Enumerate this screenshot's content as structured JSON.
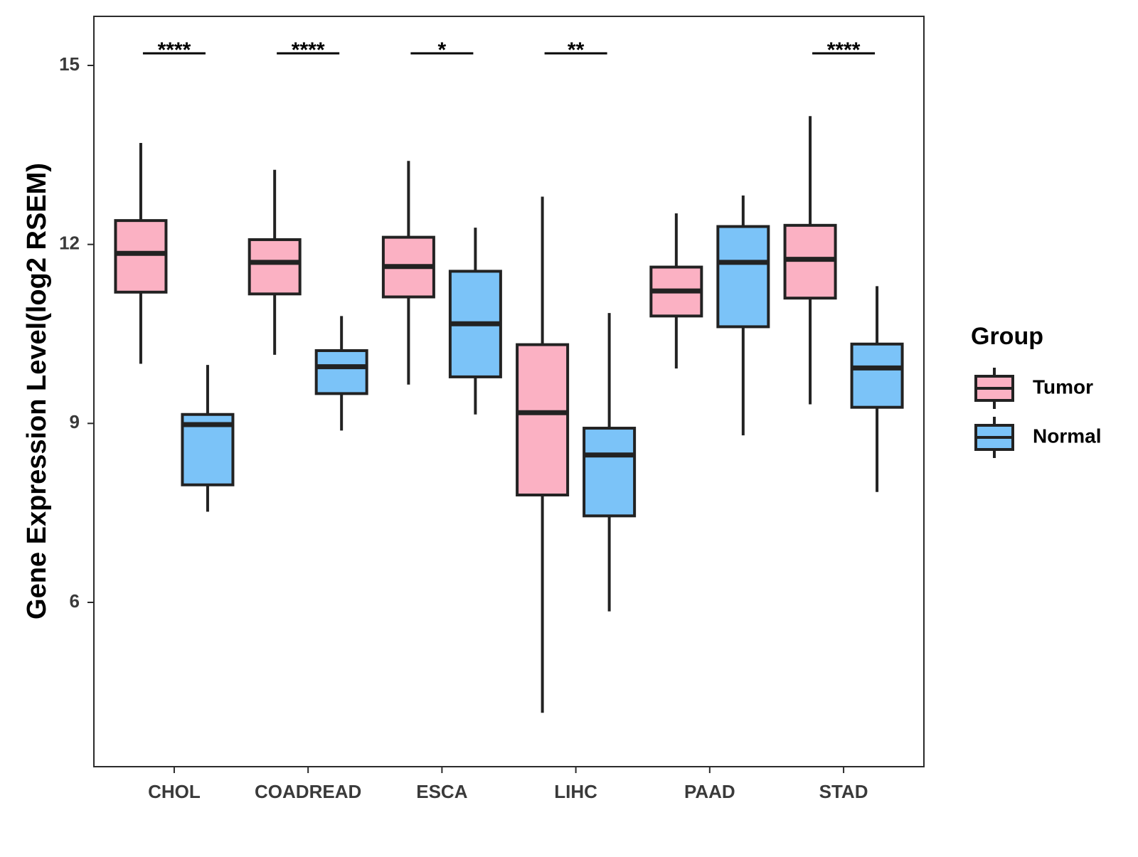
{
  "chart_data": {
    "type": "boxplot",
    "title": "",
    "xlabel": "",
    "ylabel": "Gene Expression Level(log2 RSEM)",
    "ylim": [
      3.2,
      15.8
    ],
    "yticks": [
      6,
      9,
      12,
      15
    ],
    "grid": false,
    "categories": [
      "CHOL",
      "COADREAD",
      "ESCA",
      "LIHC",
      "PAAD",
      "STAD"
    ],
    "series": [
      {
        "name": "Tumor",
        "color": "#fbb1c3",
        "boxes": [
          {
            "min": 10.0,
            "q1": 11.2,
            "median": 11.85,
            "q3": 12.4,
            "max": 13.7
          },
          {
            "min": 10.15,
            "q1": 11.17,
            "median": 11.7,
            "q3": 12.08,
            "max": 13.25
          },
          {
            "min": 9.65,
            "q1": 11.12,
            "median": 11.63,
            "q3": 12.12,
            "max": 13.4
          },
          {
            "min": 4.15,
            "q1": 7.8,
            "median": 9.18,
            "q3": 10.32,
            "max": 12.8
          },
          {
            "min": 9.92,
            "q1": 10.8,
            "median": 11.22,
            "q3": 11.62,
            "max": 12.52
          },
          {
            "min": 9.32,
            "q1": 11.1,
            "median": 11.75,
            "q3": 12.32,
            "max": 14.15
          }
        ]
      },
      {
        "name": "Normal",
        "color": "#7bc3f8",
        "boxes": [
          {
            "min": 7.52,
            "q1": 7.97,
            "median": 8.98,
            "q3": 9.15,
            "max": 9.98
          },
          {
            "min": 8.88,
            "q1": 9.5,
            "median": 9.95,
            "q3": 10.22,
            "max": 10.8
          },
          {
            "min": 9.15,
            "q1": 9.78,
            "median": 10.67,
            "q3": 11.55,
            "max": 12.28
          },
          {
            "min": 5.85,
            "q1": 7.45,
            "median": 8.47,
            "q3": 8.92,
            "max": 10.85
          },
          {
            "min": 8.8,
            "q1": 10.62,
            "median": 11.7,
            "q3": 12.3,
            "max": 12.82
          },
          {
            "min": 7.85,
            "q1": 9.27,
            "median": 9.93,
            "q3": 10.33,
            "max": 11.3
          }
        ]
      }
    ],
    "significance": [
      {
        "category": "CHOL",
        "label": "****"
      },
      {
        "category": "COADREAD",
        "label": "****"
      },
      {
        "category": "ESCA",
        "label": "*"
      },
      {
        "category": "LIHC",
        "label": "**"
      },
      {
        "category": "PAAD",
        "label": ""
      },
      {
        "category": "STAD",
        "label": "****"
      }
    ],
    "legend": {
      "title": "Group",
      "position": "right",
      "entries": [
        "Tumor",
        "Normal"
      ]
    }
  }
}
